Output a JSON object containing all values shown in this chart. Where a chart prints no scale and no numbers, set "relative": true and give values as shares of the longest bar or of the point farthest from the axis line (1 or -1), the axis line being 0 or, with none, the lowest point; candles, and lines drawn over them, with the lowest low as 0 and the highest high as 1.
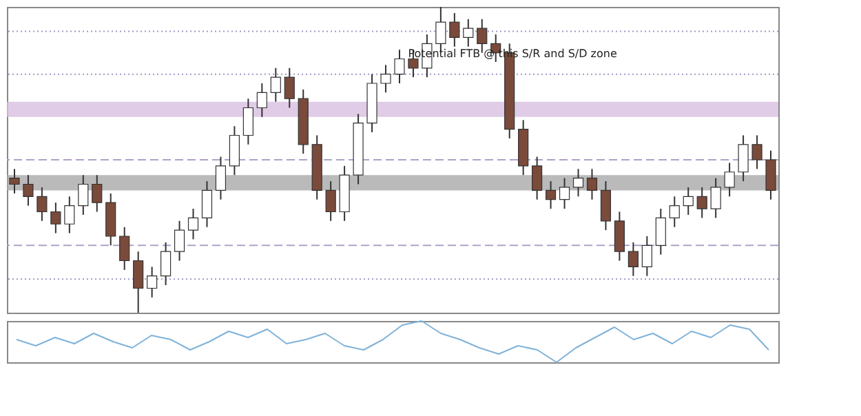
{
  "chart_data": [
    {
      "type": "candlestick",
      "relative": true,
      "tick_labels": false,
      "grid": false,
      "legend": false,
      "categories": [
        null,
        null,
        null,
        null,
        null,
        null,
        null,
        null,
        null,
        null,
        null,
        null,
        null,
        null,
        null,
        null,
        null,
        null,
        null,
        null,
        null,
        null,
        null,
        null,
        null,
        null,
        null,
        null,
        null,
        null,
        null,
        null,
        null,
        null,
        null,
        null,
        null,
        null,
        null,
        null,
        null,
        null,
        null,
        null,
        null,
        null,
        null,
        null,
        null,
        null,
        null,
        null,
        null,
        null,
        null,
        null
      ],
      "ohlc": [
        [
          0.44,
          0.47,
          0.39,
          0.42
        ],
        [
          0.42,
          0.45,
          0.35,
          0.38
        ],
        [
          0.38,
          0.41,
          0.3,
          0.33
        ],
        [
          0.33,
          0.36,
          0.26,
          0.29
        ],
        [
          0.29,
          0.38,
          0.26,
          0.35
        ],
        [
          0.35,
          0.45,
          0.32,
          0.42
        ],
        [
          0.42,
          0.45,
          0.33,
          0.36
        ],
        [
          0.36,
          0.39,
          0.22,
          0.25
        ],
        [
          0.25,
          0.28,
          0.14,
          0.17
        ],
        [
          0.17,
          0.2,
          0.0,
          0.08
        ],
        [
          0.08,
          0.15,
          0.05,
          0.12
        ],
        [
          0.12,
          0.23,
          0.09,
          0.2
        ],
        [
          0.2,
          0.3,
          0.17,
          0.27
        ],
        [
          0.27,
          0.34,
          0.24,
          0.31
        ],
        [
          0.31,
          0.43,
          0.28,
          0.4
        ],
        [
          0.4,
          0.51,
          0.37,
          0.48
        ],
        [
          0.48,
          0.61,
          0.45,
          0.58
        ],
        [
          0.58,
          0.7,
          0.55,
          0.67
        ],
        [
          0.67,
          0.75,
          0.64,
          0.72
        ],
        [
          0.72,
          0.8,
          0.69,
          0.77
        ],
        [
          0.77,
          0.8,
          0.67,
          0.7
        ],
        [
          0.7,
          0.73,
          0.52,
          0.55
        ],
        [
          0.55,
          0.58,
          0.37,
          0.4
        ],
        [
          0.4,
          0.43,
          0.3,
          0.33
        ],
        [
          0.33,
          0.48,
          0.3,
          0.45
        ],
        [
          0.45,
          0.65,
          0.42,
          0.62
        ],
        [
          0.62,
          0.78,
          0.59,
          0.75
        ],
        [
          0.75,
          0.81,
          0.72,
          0.78
        ],
        [
          0.78,
          0.86,
          0.75,
          0.83
        ],
        [
          0.83,
          0.86,
          0.77,
          0.8
        ],
        [
          0.8,
          0.91,
          0.77,
          0.88
        ],
        [
          0.88,
          1.0,
          0.85,
          0.95
        ],
        [
          0.95,
          0.98,
          0.87,
          0.9
        ],
        [
          0.9,
          0.96,
          0.87,
          0.93
        ],
        [
          0.93,
          0.96,
          0.85,
          0.88
        ],
        [
          0.88,
          0.91,
          0.82,
          0.85
        ],
        [
          0.85,
          0.88,
          0.57,
          0.6
        ],
        [
          0.6,
          0.63,
          0.45,
          0.48
        ],
        [
          0.48,
          0.51,
          0.37,
          0.4
        ],
        [
          0.4,
          0.43,
          0.34,
          0.37
        ],
        [
          0.37,
          0.44,
          0.34,
          0.41
        ],
        [
          0.41,
          0.47,
          0.38,
          0.44
        ],
        [
          0.44,
          0.47,
          0.37,
          0.4
        ],
        [
          0.4,
          0.43,
          0.27,
          0.3
        ],
        [
          0.3,
          0.33,
          0.17,
          0.2
        ],
        [
          0.2,
          0.23,
          0.12,
          0.15
        ],
        [
          0.15,
          0.25,
          0.12,
          0.22
        ],
        [
          0.22,
          0.34,
          0.19,
          0.31
        ],
        [
          0.31,
          0.38,
          0.28,
          0.35
        ],
        [
          0.35,
          0.41,
          0.32,
          0.38
        ],
        [
          0.38,
          0.41,
          0.31,
          0.34
        ],
        [
          0.34,
          0.44,
          0.31,
          0.41
        ],
        [
          0.41,
          0.49,
          0.38,
          0.46
        ],
        [
          0.46,
          0.58,
          0.43,
          0.55
        ],
        [
          0.55,
          0.58,
          0.47,
          0.5
        ],
        [
          0.5,
          0.53,
          0.37,
          0.4
        ]
      ],
      "bands": [
        {
          "axis": "y",
          "from": 0.4,
          "to": 0.45,
          "color": "#a9a9a9"
        },
        {
          "axis": "y",
          "from": 0.64,
          "to": 0.69,
          "color": "#d8bfe0"
        }
      ],
      "ref_lines": [
        {
          "axis": "y",
          "value": 0.92,
          "line_style": "dotted",
          "color": "#9a9ac8"
        },
        {
          "axis": "y",
          "value": 0.78,
          "line_style": "dotted",
          "color": "#9a9ac8"
        },
        {
          "axis": "y",
          "value": 0.5,
          "line_style": "dashed",
          "color": "#b0a0c8"
        },
        {
          "axis": "y",
          "value": 0.22,
          "line_style": "dashed",
          "color": "#b0a0c8"
        },
        {
          "axis": "y",
          "value": 0.11,
          "line_style": "dotted",
          "color": "#9a9ac8"
        }
      ],
      "annotations": [
        "Potential FTB @ this S/R and S/D zone"
      ]
    },
    {
      "type": "line",
      "relative": true,
      "tick_labels": false,
      "grid": false,
      "legend": false,
      "categories": [
        null,
        null,
        null,
        null,
        null,
        null,
        null,
        null,
        null,
        null,
        null,
        null,
        null,
        null,
        null,
        null,
        null,
        null,
        null,
        null,
        null,
        null,
        null,
        null,
        null,
        null,
        null,
        null,
        null,
        null,
        null,
        null,
        null,
        null,
        null,
        null,
        null,
        null,
        null,
        null
      ],
      "series": [
        {
          "color": "#7fb2d9",
          "values": [
            0.55,
            0.4,
            0.6,
            0.45,
            0.7,
            0.5,
            0.35,
            0.65,
            0.55,
            0.3,
            0.5,
            0.75,
            0.6,
            0.8,
            0.45,
            0.55,
            0.7,
            0.4,
            0.3,
            0.55,
            0.9,
            1.0,
            0.7,
            0.55,
            0.35,
            0.2,
            0.4,
            0.3,
            0.0,
            0.35,
            0.6,
            0.85,
            0.55,
            0.7,
            0.45,
            0.75,
            0.6,
            0.9,
            0.8,
            0.3
          ]
        }
      ]
    }
  ]
}
